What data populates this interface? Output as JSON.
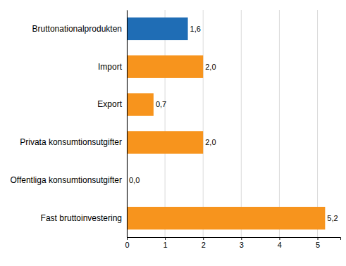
{
  "chart_data": {
    "type": "bar",
    "orientation": "horizontal",
    "categories": [
      "Bruttonationalprodukten",
      "Import",
      "Export",
      "Privata konsumtionsutgifter",
      "Offentliga konsumtionsutgifter",
      "Fast bruttoinvestering"
    ],
    "values": [
      1.6,
      2.0,
      0.7,
      2.0,
      0.0,
      5.2
    ],
    "value_labels": [
      "1,6",
      "2,0",
      "0,7",
      "2,0",
      "0,0",
      "5,2"
    ],
    "colors": [
      "#1f6db5",
      "#f7941d",
      "#f7941d",
      "#f7941d",
      "#f7941d",
      "#f7941d"
    ],
    "xlim": [
      0,
      5.6
    ],
    "xticks": [
      0,
      1,
      2,
      3,
      4,
      5
    ],
    "grid": true,
    "data_labels": true
  }
}
